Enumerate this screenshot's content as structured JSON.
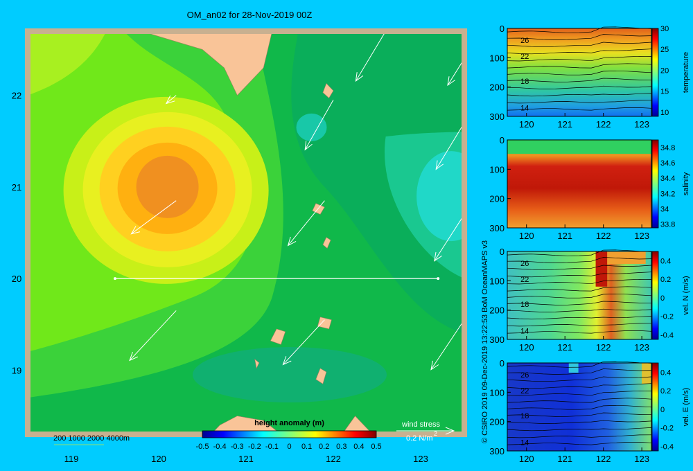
{
  "title": "OM_an02 for 28-Nov-2019 00Z",
  "credit": "© CSIRO 2019   09-Dec-2019 13:22:53 BoM OceanMAPS v3",
  "colors": {
    "background": "#00ccff",
    "land": "#f9c498",
    "frame": "#c8b090"
  },
  "chart_data": [
    {
      "type": "heatmap",
      "xlim": [
        118.5,
        123.5
      ],
      "ylim": [
        18.3,
        22.7
      ],
      "xticks": [
        "119",
        "120",
        "121",
        "122",
        "123"
      ],
      "yticks": [
        "19",
        "20",
        "21",
        "22"
      ],
      "bathymetry_legend": "200  1000  2000  4000m",
      "colorbar": {
        "label": "height anomaly  (m)",
        "ticks": [
          "-0.5",
          "-0.4",
          "-0.3",
          "-0.2",
          "-0.1",
          "0",
          "0.1",
          "0.2",
          "0.3",
          "0.4",
          "0.5"
        ],
        "range": [
          -0.5,
          0.5
        ]
      },
      "anomaly_centers": [
        {
          "x": 120.1,
          "y": 21.0,
          "value": 0.3
        },
        {
          "x": 123.3,
          "y": 20.9,
          "value": -0.15
        },
        {
          "x": 121.5,
          "y": 18.9,
          "value": -0.05
        }
      ],
      "section_line": {
        "y": 20.0,
        "x_from": 119.5,
        "x_to": 123.2
      },
      "wind_stress_legend": {
        "label": "wind stress",
        "scale": "0.2 N/m",
        "exponent": "2"
      },
      "wind_vectors": [
        {
          "x": 122.6,
          "y": 22.7,
          "u": -0.18,
          "v": -0.3
        },
        {
          "x": 123.5,
          "y": 22.4,
          "u": -0.1,
          "v": -0.16
        },
        {
          "x": 120.2,
          "y": 22.0,
          "u": -0.06,
          "v": -0.05
        },
        {
          "x": 122.0,
          "y": 21.95,
          "u": -0.17,
          "v": -0.3
        },
        {
          "x": 123.5,
          "y": 21.7,
          "u": -0.17,
          "v": -0.28
        },
        {
          "x": 120.2,
          "y": 20.85,
          "u": -0.27,
          "v": -0.2
        },
        {
          "x": 121.9,
          "y": 20.85,
          "u": -0.22,
          "v": -0.27
        },
        {
          "x": 123.5,
          "y": 20.7,
          "u": -0.18,
          "v": -0.28
        },
        {
          "x": 120.2,
          "y": 19.65,
          "u": -0.28,
          "v": -0.3
        },
        {
          "x": 121.9,
          "y": 19.55,
          "u": -0.25,
          "v": -0.27
        },
        {
          "x": 123.5,
          "y": 19.55,
          "u": -0.2,
          "v": -0.3
        },
        {
          "x": 120.2,
          "y": 18.3,
          "u": -0.05,
          "v": -0.05
        }
      ]
    },
    {
      "type": "heatmap",
      "xlim": [
        119.5,
        123.25
      ],
      "ylim": [
        300,
        0
      ],
      "xticks": [
        "120",
        "121",
        "122",
        "123"
      ],
      "yticks": [
        "0",
        "100",
        "200",
        "300"
      ],
      "colorbar": {
        "label": "temperature",
        "ticks": [
          "10",
          "15",
          "20",
          "25",
          "30"
        ],
        "range": [
          9,
          30
        ]
      },
      "contour_labels": [
        {
          "x": 119.7,
          "y": 40,
          "text": "26"
        },
        {
          "x": 119.7,
          "y": 95,
          "text": "22"
        },
        {
          "x": 119.7,
          "y": 180,
          "text": "18"
        },
        {
          "x": 119.7,
          "y": 270,
          "text": "14"
        }
      ]
    },
    {
      "type": "heatmap",
      "xlim": [
        119.5,
        123.25
      ],
      "ylim": [
        300,
        0
      ],
      "xticks": [
        "120",
        "121",
        "122",
        "123"
      ],
      "yticks": [
        "0",
        "100",
        "200",
        "300"
      ],
      "colorbar": {
        "label": "salinity",
        "ticks": [
          "33.8",
          "34",
          "34.2",
          "34.4",
          "34.6",
          "34.8"
        ],
        "range": [
          33.75,
          34.9
        ]
      }
    },
    {
      "type": "heatmap",
      "xlim": [
        119.5,
        123.25
      ],
      "ylim": [
        300,
        0
      ],
      "xticks": [
        "120",
        "121",
        "122",
        "123"
      ],
      "yticks": [
        "0",
        "100",
        "200",
        "300"
      ],
      "colorbar": {
        "label": "vel. N  (m/s)",
        "ticks": [
          "-0.4",
          "-0.2",
          "0",
          "0.2",
          "0.4"
        ],
        "range": [
          -0.45,
          0.5
        ]
      },
      "contour_labels": [
        {
          "x": 119.7,
          "y": 40,
          "text": "26"
        },
        {
          "x": 119.7,
          "y": 95,
          "text": "22"
        },
        {
          "x": 119.7,
          "y": 180,
          "text": "18"
        },
        {
          "x": 119.7,
          "y": 270,
          "text": "14"
        }
      ]
    },
    {
      "type": "heatmap",
      "xlim": [
        119.5,
        123.25
      ],
      "ylim": [
        300,
        0
      ],
      "xticks": [
        "120",
        "121",
        "122",
        "123"
      ],
      "yticks": [
        "0",
        "100",
        "200",
        "300"
      ],
      "colorbar": {
        "label": "vel. E  (m/s)",
        "ticks": [
          "-0.4",
          "-0.2",
          "0",
          "0.2",
          "0.4"
        ],
        "range": [
          -0.45,
          0.5
        ]
      },
      "contour_labels": [
        {
          "x": 119.7,
          "y": 40,
          "text": "26"
        },
        {
          "x": 119.7,
          "y": 95,
          "text": "22"
        },
        {
          "x": 119.7,
          "y": 180,
          "text": "18"
        },
        {
          "x": 119.7,
          "y": 270,
          "text": "14"
        }
      ]
    }
  ]
}
